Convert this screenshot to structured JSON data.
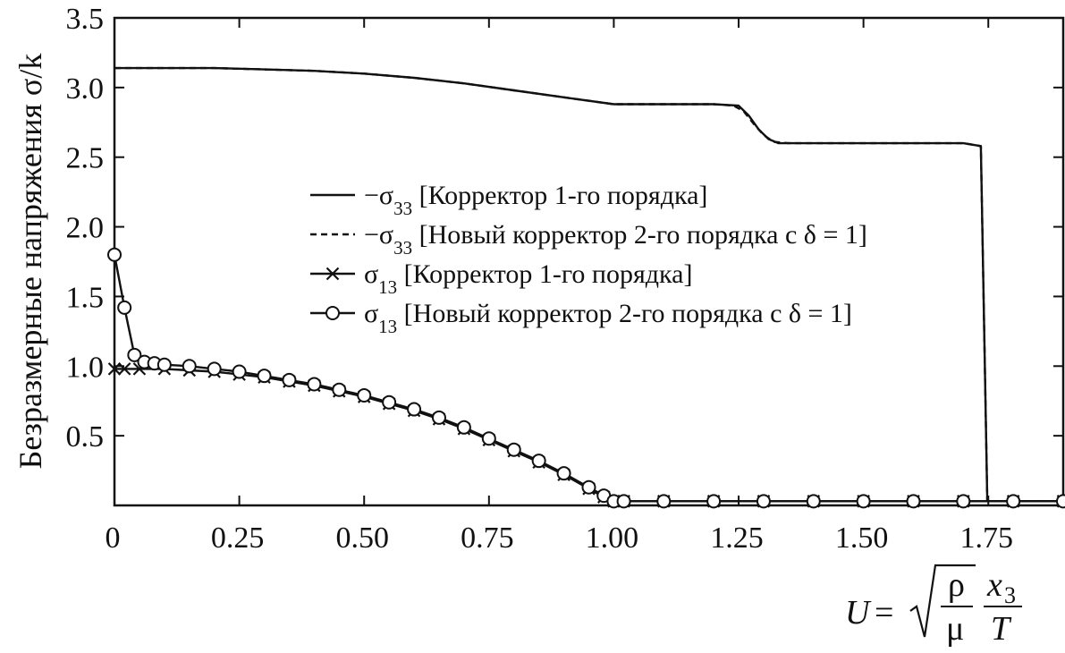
{
  "chart_data": {
    "type": "line",
    "ylabel": "Безразмерные напряжения σ/k",
    "xlabel": {
      "lhs": "U",
      "eq": "=",
      "num1": "ρ",
      "den1": "μ",
      "num2": "x",
      "num2_sub": "3",
      "den2": "T"
    },
    "xlim": [
      0,
      1.9
    ],
    "ylim": [
      0,
      3.5
    ],
    "x_ticks": [
      {
        "value": 0,
        "label": "0"
      },
      {
        "value": 0.25,
        "label": "0.25"
      },
      {
        "value": 0.5,
        "label": "0.50"
      },
      {
        "value": 0.75,
        "label": "0.75"
      },
      {
        "value": 1.0,
        "label": "1.00"
      },
      {
        "value": 1.25,
        "label": "1.25"
      },
      {
        "value": 1.5,
        "label": "1.50"
      },
      {
        "value": 1.75,
        "label": "1.75"
      }
    ],
    "y_ticks": [
      {
        "value": 0.5,
        "label": "0.5"
      },
      {
        "value": 1.0,
        "label": "1.0"
      },
      {
        "value": 1.5,
        "label": "1.5"
      },
      {
        "value": 2.0,
        "label": "2.0"
      },
      {
        "value": 2.5,
        "label": "2.5"
      },
      {
        "value": 3.0,
        "label": "3.0"
      },
      {
        "value": 3.5,
        "label": "3.5"
      }
    ],
    "legend_position": "center",
    "grid": false,
    "series": [
      {
        "name": "−σ33 [Корректор 1-го порядка]",
        "label_parts": {
          "prefix": "−σ",
          "sub": "33",
          "text": " [Корректор 1-го порядка]"
        },
        "style": "solid",
        "marker": "none",
        "x": [
          0,
          0.1,
          0.2,
          0.3,
          0.4,
          0.5,
          0.6,
          0.7,
          0.8,
          0.9,
          1.0,
          1.1,
          1.2,
          1.25,
          1.27,
          1.29,
          1.31,
          1.33,
          1.4,
          1.5,
          1.6,
          1.7,
          1.735,
          1.742,
          1.748,
          1.8,
          1.9
        ],
        "y": [
          3.14,
          3.14,
          3.14,
          3.13,
          3.12,
          3.1,
          3.07,
          3.03,
          2.98,
          2.93,
          2.88,
          2.88,
          2.88,
          2.87,
          2.8,
          2.7,
          2.63,
          2.6,
          2.6,
          2.6,
          2.6,
          2.6,
          2.58,
          1.2,
          0.03,
          0.03,
          0.03
        ]
      },
      {
        "name": "−σ33 [Новый корректор 2-го порядка с δ = 1]",
        "label_parts": {
          "prefix": "−σ",
          "sub": "33",
          "text": " [Новый корректор 2-го порядка с δ = 1]"
        },
        "style": "dashed",
        "marker": "none",
        "x": [
          0,
          0.1,
          0.2,
          0.3,
          0.4,
          0.5,
          0.6,
          0.7,
          0.8,
          0.9,
          1.0,
          1.1,
          1.2,
          1.24,
          1.26,
          1.28,
          1.3,
          1.32,
          1.35,
          1.4,
          1.5,
          1.6,
          1.7,
          1.735,
          1.742,
          1.748,
          1.8,
          1.9
        ],
        "y": [
          3.14,
          3.14,
          3.14,
          3.13,
          3.12,
          3.1,
          3.07,
          3.03,
          2.98,
          2.93,
          2.88,
          2.88,
          2.88,
          2.87,
          2.83,
          2.74,
          2.66,
          2.61,
          2.6,
          2.6,
          2.6,
          2.6,
          2.6,
          2.58,
          1.2,
          0.03,
          0.03,
          0.03
        ]
      },
      {
        "name": "σ13 [Корректор 1-го порядка]",
        "label_parts": {
          "prefix": "σ",
          "sub": "13",
          "text": " [Корректор 1-го порядка]"
        },
        "style": "solid",
        "marker": "x",
        "x": [
          0,
          0.02,
          0.05,
          0.1,
          0.15,
          0.2,
          0.25,
          0.3,
          0.35,
          0.4,
          0.45,
          0.5,
          0.55,
          0.6,
          0.65,
          0.7,
          0.75,
          0.8,
          0.85,
          0.9,
          0.95,
          0.98,
          1.0,
          1.02,
          1.1,
          1.2,
          1.3,
          1.4,
          1.5,
          1.6,
          1.7,
          1.8,
          1.9
        ],
        "y": [
          0.98,
          0.98,
          0.98,
          0.98,
          0.97,
          0.96,
          0.94,
          0.92,
          0.89,
          0.86,
          0.82,
          0.78,
          0.73,
          0.68,
          0.62,
          0.55,
          0.47,
          0.39,
          0.31,
          0.22,
          0.12,
          0.06,
          0.03,
          0.03,
          0.03,
          0.03,
          0.03,
          0.03,
          0.03,
          0.03,
          0.03,
          0.03,
          0.03
        ]
      },
      {
        "name": "σ13 [Новый корректор 2-го порядка с δ = 1]",
        "label_parts": {
          "prefix": "σ",
          "sub": "13",
          "text": " [Новый корректор 2-го порядка с δ = 1]"
        },
        "style": "solid",
        "marker": "o",
        "x": [
          0,
          0.02,
          0.04,
          0.06,
          0.08,
          0.1,
          0.15,
          0.2,
          0.25,
          0.3,
          0.35,
          0.4,
          0.45,
          0.5,
          0.55,
          0.6,
          0.65,
          0.7,
          0.75,
          0.8,
          0.85,
          0.9,
          0.95,
          0.98,
          1.0,
          1.02,
          1.1,
          1.2,
          1.3,
          1.4,
          1.5,
          1.6,
          1.7,
          1.8,
          1.9
        ],
        "y": [
          1.8,
          1.42,
          1.08,
          1.03,
          1.02,
          1.01,
          1.0,
          0.98,
          0.96,
          0.93,
          0.9,
          0.87,
          0.83,
          0.79,
          0.74,
          0.69,
          0.63,
          0.56,
          0.48,
          0.4,
          0.32,
          0.23,
          0.13,
          0.07,
          0.03,
          0.03,
          0.03,
          0.03,
          0.03,
          0.03,
          0.03,
          0.03,
          0.03,
          0.03,
          0.03
        ]
      }
    ]
  }
}
